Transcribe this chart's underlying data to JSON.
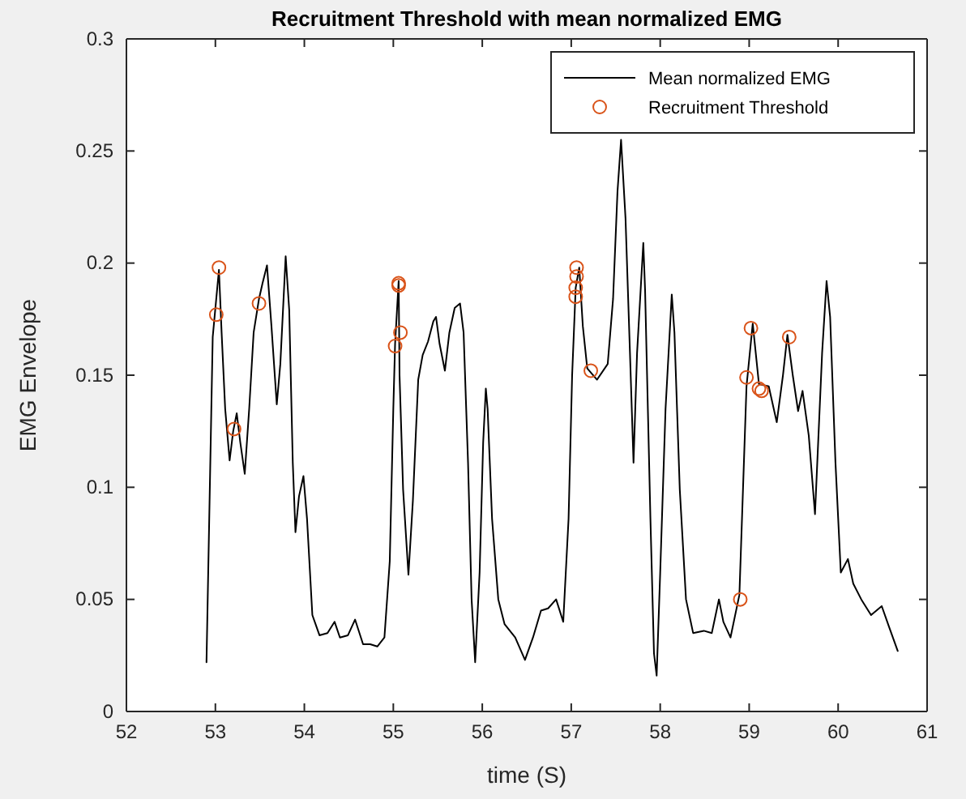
{
  "chart_data": {
    "type": "line",
    "title": "Recruitment Threshold with mean normalized EMG",
    "xlabel": "time (S)",
    "ylabel": "EMG Envelope",
    "xlim": [
      52,
      61
    ],
    "xticks": [
      52,
      53,
      54,
      55,
      56,
      57,
      58,
      59,
      60,
      61
    ],
    "ylim": [
      0,
      0.3
    ],
    "yticks": [
      0,
      0.05,
      0.1,
      0.15,
      0.2,
      0.25,
      0.3
    ],
    "grid": false,
    "legend": "top right",
    "series": [
      {
        "name": "Mean normalized EMG",
        "color": "#000000",
        "marker": "none",
        "x": [
          52.9,
          52.97,
          53.04,
          53.07,
          53.11,
          53.16,
          53.2,
          53.24,
          53.28,
          53.33,
          53.38,
          53.43,
          53.49,
          53.53,
          53.58,
          53.63,
          53.69,
          53.73,
          53.79,
          53.83,
          53.87,
          53.9,
          53.94,
          53.99,
          54.03,
          54.09,
          54.17,
          54.26,
          54.34,
          54.4,
          54.49,
          54.57,
          54.66,
          54.74,
          54.82,
          54.9,
          54.96,
          55.0,
          55.02,
          55.06,
          55.07,
          55.11,
          55.17,
          55.22,
          55.28,
          55.33,
          55.39,
          55.45,
          55.48,
          55.52,
          55.58,
          55.63,
          55.69,
          55.75,
          55.79,
          55.84,
          55.88,
          55.92,
          55.97,
          56.01,
          56.04,
          56.06,
          56.11,
          56.18,
          56.25,
          56.37,
          56.48,
          56.57,
          56.66,
          56.74,
          56.83,
          56.91,
          56.97,
          57.01,
          57.05,
          57.09,
          57.13,
          57.18,
          57.29,
          57.41,
          57.47,
          57.52,
          57.56,
          57.61,
          57.66,
          57.7,
          57.74,
          57.81,
          57.83,
          57.89,
          57.93,
          57.96,
          58.0,
          58.06,
          58.13,
          58.16,
          58.22,
          58.29,
          58.37,
          58.49,
          58.58,
          58.66,
          58.71,
          58.79,
          58.89,
          58.97,
          59.04,
          59.11,
          59.22,
          59.31,
          59.38,
          59.43,
          59.49,
          59.55,
          59.6,
          59.67,
          59.74,
          59.82,
          59.87,
          59.91,
          59.97,
          60.03,
          60.11,
          60.17,
          60.26,
          60.37,
          60.49,
          60.57,
          60.67
        ],
        "values": [
          0.022,
          0.167,
          0.197,
          0.169,
          0.135,
          0.112,
          0.125,
          0.133,
          0.12,
          0.106,
          0.135,
          0.169,
          0.184,
          0.191,
          0.199,
          0.172,
          0.137,
          0.155,
          0.203,
          0.179,
          0.111,
          0.08,
          0.096,
          0.105,
          0.086,
          0.043,
          0.034,
          0.035,
          0.04,
          0.033,
          0.034,
          0.041,
          0.03,
          0.03,
          0.029,
          0.033,
          0.067,
          0.135,
          0.164,
          0.192,
          0.15,
          0.099,
          0.061,
          0.094,
          0.148,
          0.159,
          0.165,
          0.174,
          0.176,
          0.164,
          0.152,
          0.169,
          0.18,
          0.182,
          0.169,
          0.111,
          0.05,
          0.022,
          0.062,
          0.12,
          0.144,
          0.135,
          0.086,
          0.05,
          0.039,
          0.033,
          0.023,
          0.033,
          0.045,
          0.046,
          0.05,
          0.04,
          0.086,
          0.15,
          0.189,
          0.198,
          0.172,
          0.153,
          0.148,
          0.155,
          0.184,
          0.232,
          0.255,
          0.22,
          0.16,
          0.111,
          0.16,
          0.209,
          0.188,
          0.086,
          0.026,
          0.016,
          0.062,
          0.135,
          0.186,
          0.169,
          0.099,
          0.05,
          0.035,
          0.036,
          0.035,
          0.05,
          0.04,
          0.033,
          0.052,
          0.145,
          0.173,
          0.146,
          0.145,
          0.129,
          0.15,
          0.168,
          0.15,
          0.134,
          0.143,
          0.123,
          0.088,
          0.16,
          0.192,
          0.176,
          0.111,
          0.062,
          0.068,
          0.057,
          0.05,
          0.043,
          0.047,
          0.038,
          0.027
        ]
      },
      {
        "name": "Recruitment Threshold",
        "type": "scatter",
        "color": "#d95319",
        "marker": "circle",
        "x": [
          53.04,
          53.01,
          53.21,
          53.49,
          55.06,
          55.06,
          55.08,
          55.02,
          57.06,
          57.06,
          57.05,
          57.05,
          57.22,
          59.02,
          58.97,
          59.11,
          59.14,
          59.45,
          58.9
        ],
        "values": [
          0.198,
          0.177,
          0.126,
          0.182,
          0.191,
          0.19,
          0.169,
          0.163,
          0.198,
          0.194,
          0.189,
          0.185,
          0.152,
          0.171,
          0.149,
          0.144,
          0.143,
          0.167,
          0.05
        ]
      }
    ]
  }
}
